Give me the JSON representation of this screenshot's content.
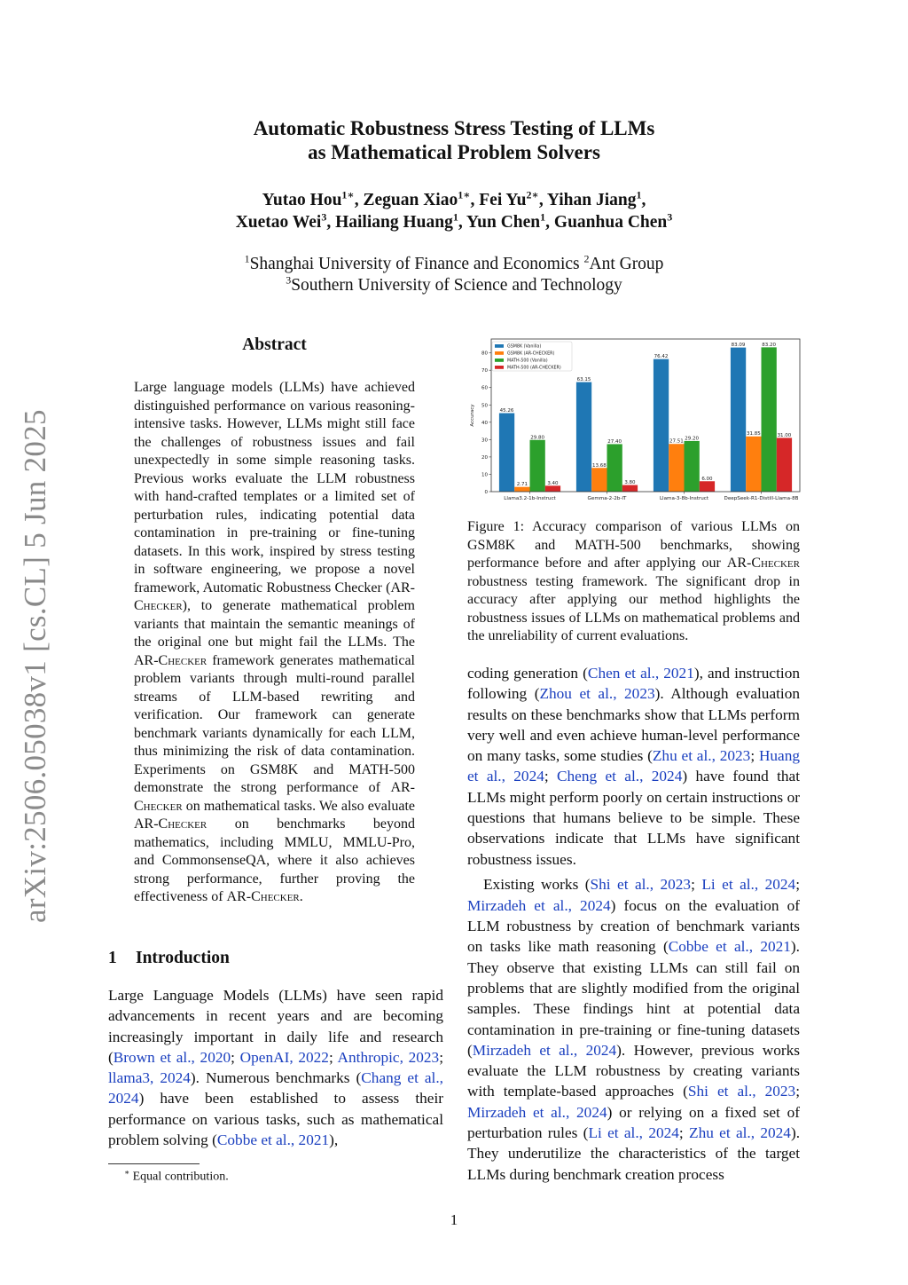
{
  "title": [
    "Automatic Robustness Stress Testing of LLMs",
    "as Mathematical Problem Solvers"
  ],
  "authors": [
    [
      {
        "name": "Yutao Hou",
        "sup": "1∗",
        "sep": ", "
      },
      {
        "name": "Zeguan Xiao",
        "sup": "1∗",
        "sep": ", "
      },
      {
        "name": "Fei Yu",
        "sup": "2∗",
        "sep": ", "
      },
      {
        "name": "Yihan Jiang",
        "sup": "1",
        "sep": ","
      }
    ],
    [
      {
        "name": "Xuetao Wei",
        "sup": "3",
        "sep": ", "
      },
      {
        "name": "Hailiang Huang",
        "sup": "1",
        "sep": ", "
      },
      {
        "name": "Yun Chen",
        "sup": "1",
        "sep": ", "
      },
      {
        "name": "Guanhua Chen",
        "sup": "3",
        "sep": ""
      }
    ]
  ],
  "affiliations": [
    [
      {
        "sup": "1",
        "name": "Shanghai University of Finance and Economics "
      },
      {
        "sup": "2",
        "name": "Ant Group"
      }
    ],
    [
      {
        "sup": "3",
        "name": "Southern University of Science and Technology"
      }
    ]
  ],
  "arxiv_stamp": "arXiv:2506.05038v1  [cs.CL]  5 Jun 2025",
  "abstract_heading": "Abstract",
  "abstract": [
    [
      "Large language models (LLMs) have achieved distinguished performance on various reasoning-intensive tasks. However, LLMs might still face the challenges of robustness issues and fail unexpectedly in some simple reasoning tasks. Previous works evaluate the LLM robustness with hand-crafted templates or a limited set of perturbation rules, indicating potential data contamination in pre-training or fine-tuning datasets. In this work, inspired by stress testing in software engineering, we propose a novel framework, Automatic Robustness Checker (",
      {
        "sc": "AR-Checker"
      },
      "), to generate mathematical problem variants that maintain the semantic meanings of the original one but might fail the LLMs. The ",
      {
        "sc": "AR-Checker"
      },
      " framework generates mathematical problem variants through multi-round parallel streams of LLM-based rewriting and verification. Our framework can generate benchmark variants dynamically for each LLM, thus minimizing the risk of data contamination. Experiments on GSM8K and MATH-500 demonstrate the strong performance of ",
      {
        "sc": "AR-Checker"
      },
      " on mathematical tasks. We also evaluate ",
      {
        "sc": "AR-Checker"
      },
      " on benchmarks beyond mathematics, including MMLU, MMLU-Pro, and CommonsenseQA, where it also achieves strong performance, further proving the effectiveness of ",
      {
        "sc": "AR-Checker"
      },
      "."
    ]
  ],
  "intro_heading": {
    "number": "1",
    "title": "Introduction"
  },
  "intro_left": [
    [
      "Large Language Models (LLMs) have seen rapid advancements in recent years and are becoming increasingly important in daily life and research (",
      {
        "cite": "Brown et al., 2020"
      },
      "; ",
      {
        "cite": "OpenAI, 2022"
      },
      "; ",
      {
        "cite": "Anthropic, 2023"
      },
      "; ",
      {
        "cite": "llama3, 2024"
      },
      "). Numerous benchmarks (",
      {
        "cite": "Chang et al., 2024"
      },
      ") have been established to assess their performance on various tasks, such as mathematical problem solving (",
      {
        "cite": "Cobbe et al., 2021"
      },
      "),"
    ]
  ],
  "intro_right": [
    [
      "coding generation (",
      {
        "cite": "Chen et al., 2021"
      },
      "), and instruction following (",
      {
        "cite": "Zhou et al., 2023"
      },
      "). Although evaluation results on these benchmarks show that LLMs perform very well and even achieve human-level performance on many tasks, some studies (",
      {
        "cite": "Zhu et al., 2023"
      },
      "; ",
      {
        "cite": "Huang et al., 2024"
      },
      "; ",
      {
        "cite": "Cheng et al., 2024"
      },
      ") have found that LLMs might perform poorly on certain instructions or questions that humans believe to be simple. These observations indicate that LLMs have significant robustness issues."
    ],
    [
      "Existing works (",
      {
        "cite": "Shi et al., 2023"
      },
      "; ",
      {
        "cite": "Li et al., 2024"
      },
      "; ",
      {
        "cite": "Mirzadeh et al., 2024"
      },
      ") focus on the evaluation of LLM robustness by creation of benchmark variants on tasks like math reasoning (",
      {
        "cite": "Cobbe et al., 2021"
      },
      "). They observe that existing LLMs can still fail on problems that are slightly modified from the original samples. These findings hint at potential data contamination in pre-training or fine-tuning datasets (",
      {
        "cite": "Mirzadeh et al., 2024"
      },
      "). However, previous works evaluate the LLM robustness by creating variants with template-based approaches (",
      {
        "cite": "Shi et al., 2023"
      },
      "; ",
      {
        "cite": "Mirzadeh et al., 2024"
      },
      ") or relying on a fixed set of perturbation rules (",
      {
        "cite": "Li et al., 2024"
      },
      "; ",
      {
        "cite": "Zhu et al., 2024"
      },
      "). They underutilize the characteristics of the target LLMs during benchmark creation process"
    ]
  ],
  "caption": [
    [
      "Figure 1: Accuracy comparison of various LLMs on GSM8K and MATH-500 benchmarks, showing performance before and after applying our ",
      {
        "sc": "AR-Checker"
      },
      " robustness testing framework. The significant drop in accuracy after applying our method highlights the robustness issues of LLMs on mathematical problems and the unreliability of current evaluations."
    ]
  ],
  "footnote": {
    "mark": "∗",
    "text": "Equal contribution."
  },
  "page_number": "1",
  "colors": {
    "cite": "#1a3fbf",
    "series": [
      "#1f77b4",
      "#ff7f0e",
      "#2ca02c",
      "#d62728"
    ]
  },
  "chart_data": {
    "type": "bar",
    "categories": [
      "Llama3.2-1b-Instruct",
      "Gemma-2-2b-IT",
      "Llama-3-8b-Instruct",
      "DeepSeek-R1-Distill-Llama-8B"
    ],
    "series": [
      {
        "name": "GSM8K (Vanilla)",
        "values": [
          45.26,
          63.15,
          76.42,
          83.09
        ]
      },
      {
        "name": "GSM8K (AR-CHECKER)",
        "values": [
          2.71,
          13.68,
          27.51,
          31.85
        ]
      },
      {
        "name": "MATH-500 (Vanilla)",
        "values": [
          29.8,
          27.4,
          29.2,
          83.2
        ]
      },
      {
        "name": "MATH-500 (AR-CHECKER)",
        "values": [
          3.4,
          3.8,
          6.0,
          31.0
        ]
      }
    ],
    "ylabel": "Accuracy",
    "yticks": [
      0,
      10,
      20,
      30,
      40,
      50,
      60,
      70,
      80
    ],
    "ylim": [
      0,
      88
    ],
    "legend": "top-left",
    "grid": false
  }
}
